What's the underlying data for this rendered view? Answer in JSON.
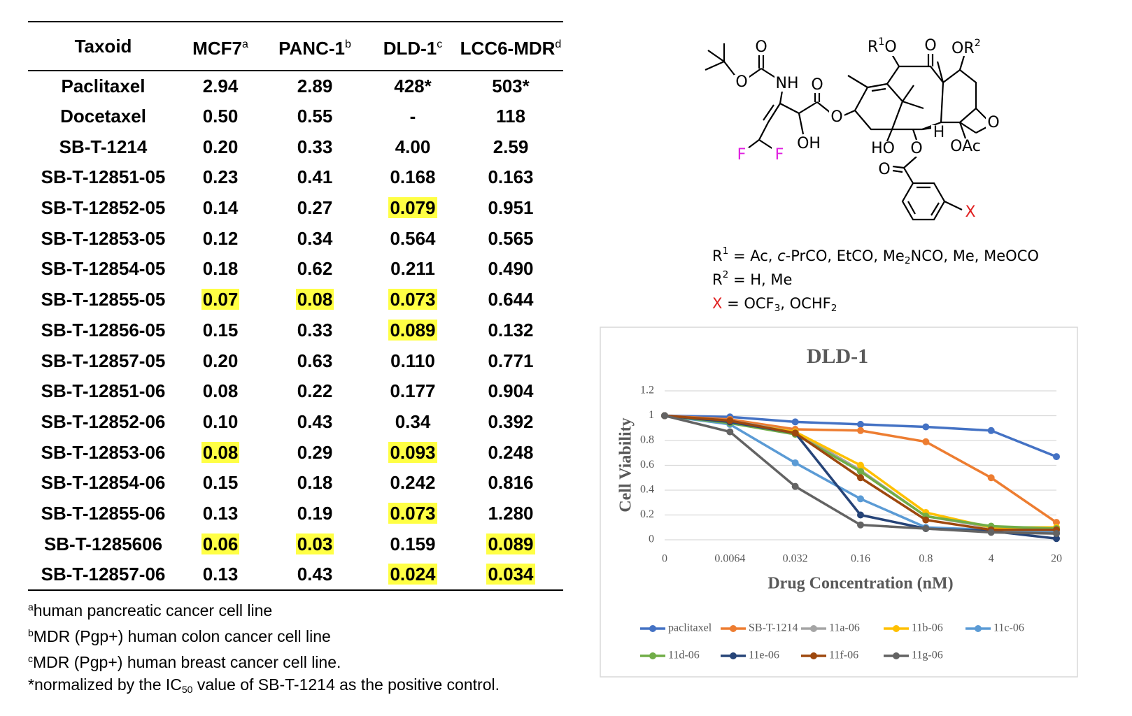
{
  "table": {
    "headers": [
      {
        "text": "Taxoid"
      },
      {
        "text": "MCF7",
        "sup": "a"
      },
      {
        "text": "PANC-1",
        "sup": "b"
      },
      {
        "text": "DLD-1",
        "sup": "c"
      },
      {
        "text": "LCC6-MDR",
        "sup": "d"
      }
    ],
    "rows": [
      {
        "name": "Paclitaxel",
        "cells": [
          "2.94",
          "2.89",
          "428*",
          "503*"
        ],
        "highlight": [
          false,
          false,
          false,
          false
        ]
      },
      {
        "name": "Docetaxel",
        "cells": [
          "0.50",
          "0.55",
          "-",
          "118"
        ],
        "highlight": [
          false,
          false,
          false,
          false
        ]
      },
      {
        "name": "SB-T-1214",
        "cells": [
          "0.20",
          "0.33",
          "4.00",
          "2.59"
        ],
        "highlight": [
          false,
          false,
          false,
          false
        ]
      },
      {
        "name": "SB-T-12851-05",
        "cells": [
          "0.23",
          "0.41",
          "0.168",
          "0.163"
        ],
        "highlight": [
          false,
          false,
          false,
          false
        ]
      },
      {
        "name": "SB-T-12852-05",
        "cells": [
          "0.14",
          "0.27",
          "0.079",
          "0.951"
        ],
        "highlight": [
          false,
          false,
          true,
          false
        ]
      },
      {
        "name": "SB-T-12853-05",
        "cells": [
          "0.12",
          "0.34",
          "0.564",
          "0.565"
        ],
        "highlight": [
          false,
          false,
          false,
          false
        ]
      },
      {
        "name": "SB-T-12854-05",
        "cells": [
          "0.18",
          "0.62",
          "0.211",
          "0.490"
        ],
        "highlight": [
          false,
          false,
          false,
          false
        ]
      },
      {
        "name": "SB-T-12855-05",
        "cells": [
          "0.07",
          "0.08",
          "0.073",
          "0.644"
        ],
        "highlight": [
          true,
          true,
          true,
          false
        ]
      },
      {
        "name": "SB-T-12856-05",
        "cells": [
          "0.15",
          "0.33",
          "0.089",
          "0.132"
        ],
        "highlight": [
          false,
          false,
          true,
          false
        ]
      },
      {
        "name": "SB-T-12857-05",
        "cells": [
          "0.20",
          "0.63",
          "0.110",
          "0.771"
        ],
        "highlight": [
          false,
          false,
          false,
          false
        ]
      },
      {
        "name": "SB-T-12851-06",
        "cells": [
          "0.08",
          "0.22",
          "0.177",
          "0.904"
        ],
        "highlight": [
          false,
          false,
          false,
          false
        ]
      },
      {
        "name": "SB-T-12852-06",
        "cells": [
          "0.10",
          "0.43",
          "0.34",
          "0.392"
        ],
        "highlight": [
          false,
          false,
          false,
          false
        ]
      },
      {
        "name": "SB-T-12853-06",
        "cells": [
          "0.08",
          "0.29",
          "0.093",
          "0.248"
        ],
        "highlight": [
          true,
          false,
          true,
          false
        ]
      },
      {
        "name": "SB-T-12854-06",
        "cells": [
          "0.15",
          "0.18",
          "0.242",
          "0.816"
        ],
        "highlight": [
          false,
          false,
          false,
          false
        ]
      },
      {
        "name": "SB-T-12855-06",
        "cells": [
          "0.13",
          "0.19",
          "0.073",
          "1.280"
        ],
        "highlight": [
          false,
          false,
          true,
          false
        ]
      },
      {
        "name": "SB-T-1285606",
        "cells": [
          "0.06",
          "0.03",
          "0.159",
          "0.089"
        ],
        "highlight": [
          true,
          true,
          false,
          true
        ]
      },
      {
        "name": "SB-T-12857-06",
        "cells": [
          "0.13",
          "0.43",
          "0.024",
          "0.034"
        ],
        "highlight": [
          false,
          false,
          true,
          true
        ]
      }
    ],
    "footnotes": [
      [
        {
          "text": "a",
          "style": "sup"
        },
        {
          "text": "human pancreatic cancer cell line"
        }
      ],
      [
        {
          "text": "b",
          "style": "sup"
        },
        {
          "text": "MDR (Pgp+) human colon cancer cell line"
        }
      ],
      [
        {
          "text": "c",
          "style": "sup"
        },
        {
          "text": "MDR (Pgp+) human breast cancer cell line."
        }
      ],
      [
        {
          "text": "*normalized by the IC"
        },
        {
          "text": "50",
          "style": "sub"
        },
        {
          "text": " value of SB-T-1214 as the positive control."
        }
      ]
    ]
  },
  "structure": {
    "atoms": [
      {
        "text": "O"
      },
      {
        "text": "O"
      },
      {
        "text": "NH"
      },
      {
        "text": "O"
      },
      {
        "text": "O"
      },
      {
        "text": "F",
        "color": "#e020e0"
      },
      {
        "text": "F",
        "color": "#e020e0"
      },
      {
        "text": "OH"
      },
      {
        "text": "O"
      },
      {
        "text": "O"
      },
      {
        "text": "HO"
      },
      {
        "text": "H"
      },
      {
        "text": "O"
      },
      {
        "text": "OAc"
      },
      {
        "text": "O"
      },
      {
        "text": "X",
        "color": "#e02020"
      }
    ],
    "r1o": [
      {
        "text": "R"
      },
      {
        "text": "1",
        "style": "sup"
      },
      {
        "text": "O"
      }
    ],
    "or2": [
      {
        "text": "OR"
      },
      {
        "text": "2",
        "style": "sup"
      }
    ],
    "legend": [
      [
        {
          "text": "R"
        },
        {
          "text": "1",
          "style": "sup"
        },
        {
          "text": " = Ac, "
        },
        {
          "text": "c",
          "style": "i"
        },
        {
          "text": "-PrCO, EtCO, Me"
        },
        {
          "text": "2",
          "style": "sub"
        },
        {
          "text": "NCO, Me, MeOCO"
        }
      ],
      [
        {
          "text": "R"
        },
        {
          "text": "2",
          "style": "sup"
        },
        {
          "text": " = H, Me"
        }
      ],
      [
        {
          "text": "X",
          "color": "#e02020"
        },
        {
          "text": " = OCF"
        },
        {
          "text": "3",
          "style": "sub"
        },
        {
          "text": ", OCHF"
        },
        {
          "text": "2",
          "style": "sub"
        }
      ]
    ]
  },
  "chart_data": {
    "type": "line",
    "title": "DLD-1",
    "x_label": "Drug Concentration (nM)",
    "y_label": "Cell Viability",
    "categories": [
      "0",
      "0.0064",
      "0.032",
      "0.16",
      "0.8",
      "4",
      "20"
    ],
    "ylim": [
      0,
      1.2
    ],
    "yticks": [
      0,
      0.2,
      0.4,
      0.6,
      0.8,
      1,
      1.2
    ],
    "grid": true,
    "legend": "bottom",
    "series": [
      {
        "name": "paclitaxel",
        "color": "#4472c4",
        "values": [
          1,
          0.99,
          0.95,
          0.93,
          0.91,
          0.88,
          0.67
        ]
      },
      {
        "name": "SB-T-1214",
        "color": "#ed7d31",
        "values": [
          1,
          0.97,
          0.89,
          0.88,
          0.79,
          0.5,
          0.14
        ]
      },
      {
        "name": "11a-06",
        "color": "#a5a5a5",
        "values": [
          1,
          0.96,
          0.87,
          0.56,
          0.19,
          0.1,
          0.07
        ]
      },
      {
        "name": "11b-06",
        "color": "#ffc000",
        "values": [
          1,
          0.95,
          0.87,
          0.6,
          0.22,
          0.1,
          0.1
        ]
      },
      {
        "name": "11c-06",
        "color": "#5b9bd5",
        "values": [
          1,
          0.93,
          0.62,
          0.33,
          0.1,
          0.08,
          0.06
        ]
      },
      {
        "name": "11d-06",
        "color": "#70ad47",
        "values": [
          1,
          0.94,
          0.85,
          0.55,
          0.19,
          0.11,
          0.09
        ]
      },
      {
        "name": "11e-06",
        "color": "#264478",
        "values": [
          1,
          0.95,
          0.86,
          0.2,
          0.09,
          0.07,
          0.01
        ]
      },
      {
        "name": "11f-06",
        "color": "#9e480e",
        "values": [
          1,
          0.96,
          0.86,
          0.5,
          0.16,
          0.08,
          0.08
        ]
      },
      {
        "name": "11g-06",
        "color": "#636363",
        "values": [
          1,
          0.87,
          0.43,
          0.12,
          0.09,
          0.06,
          0.05
        ]
      }
    ]
  }
}
